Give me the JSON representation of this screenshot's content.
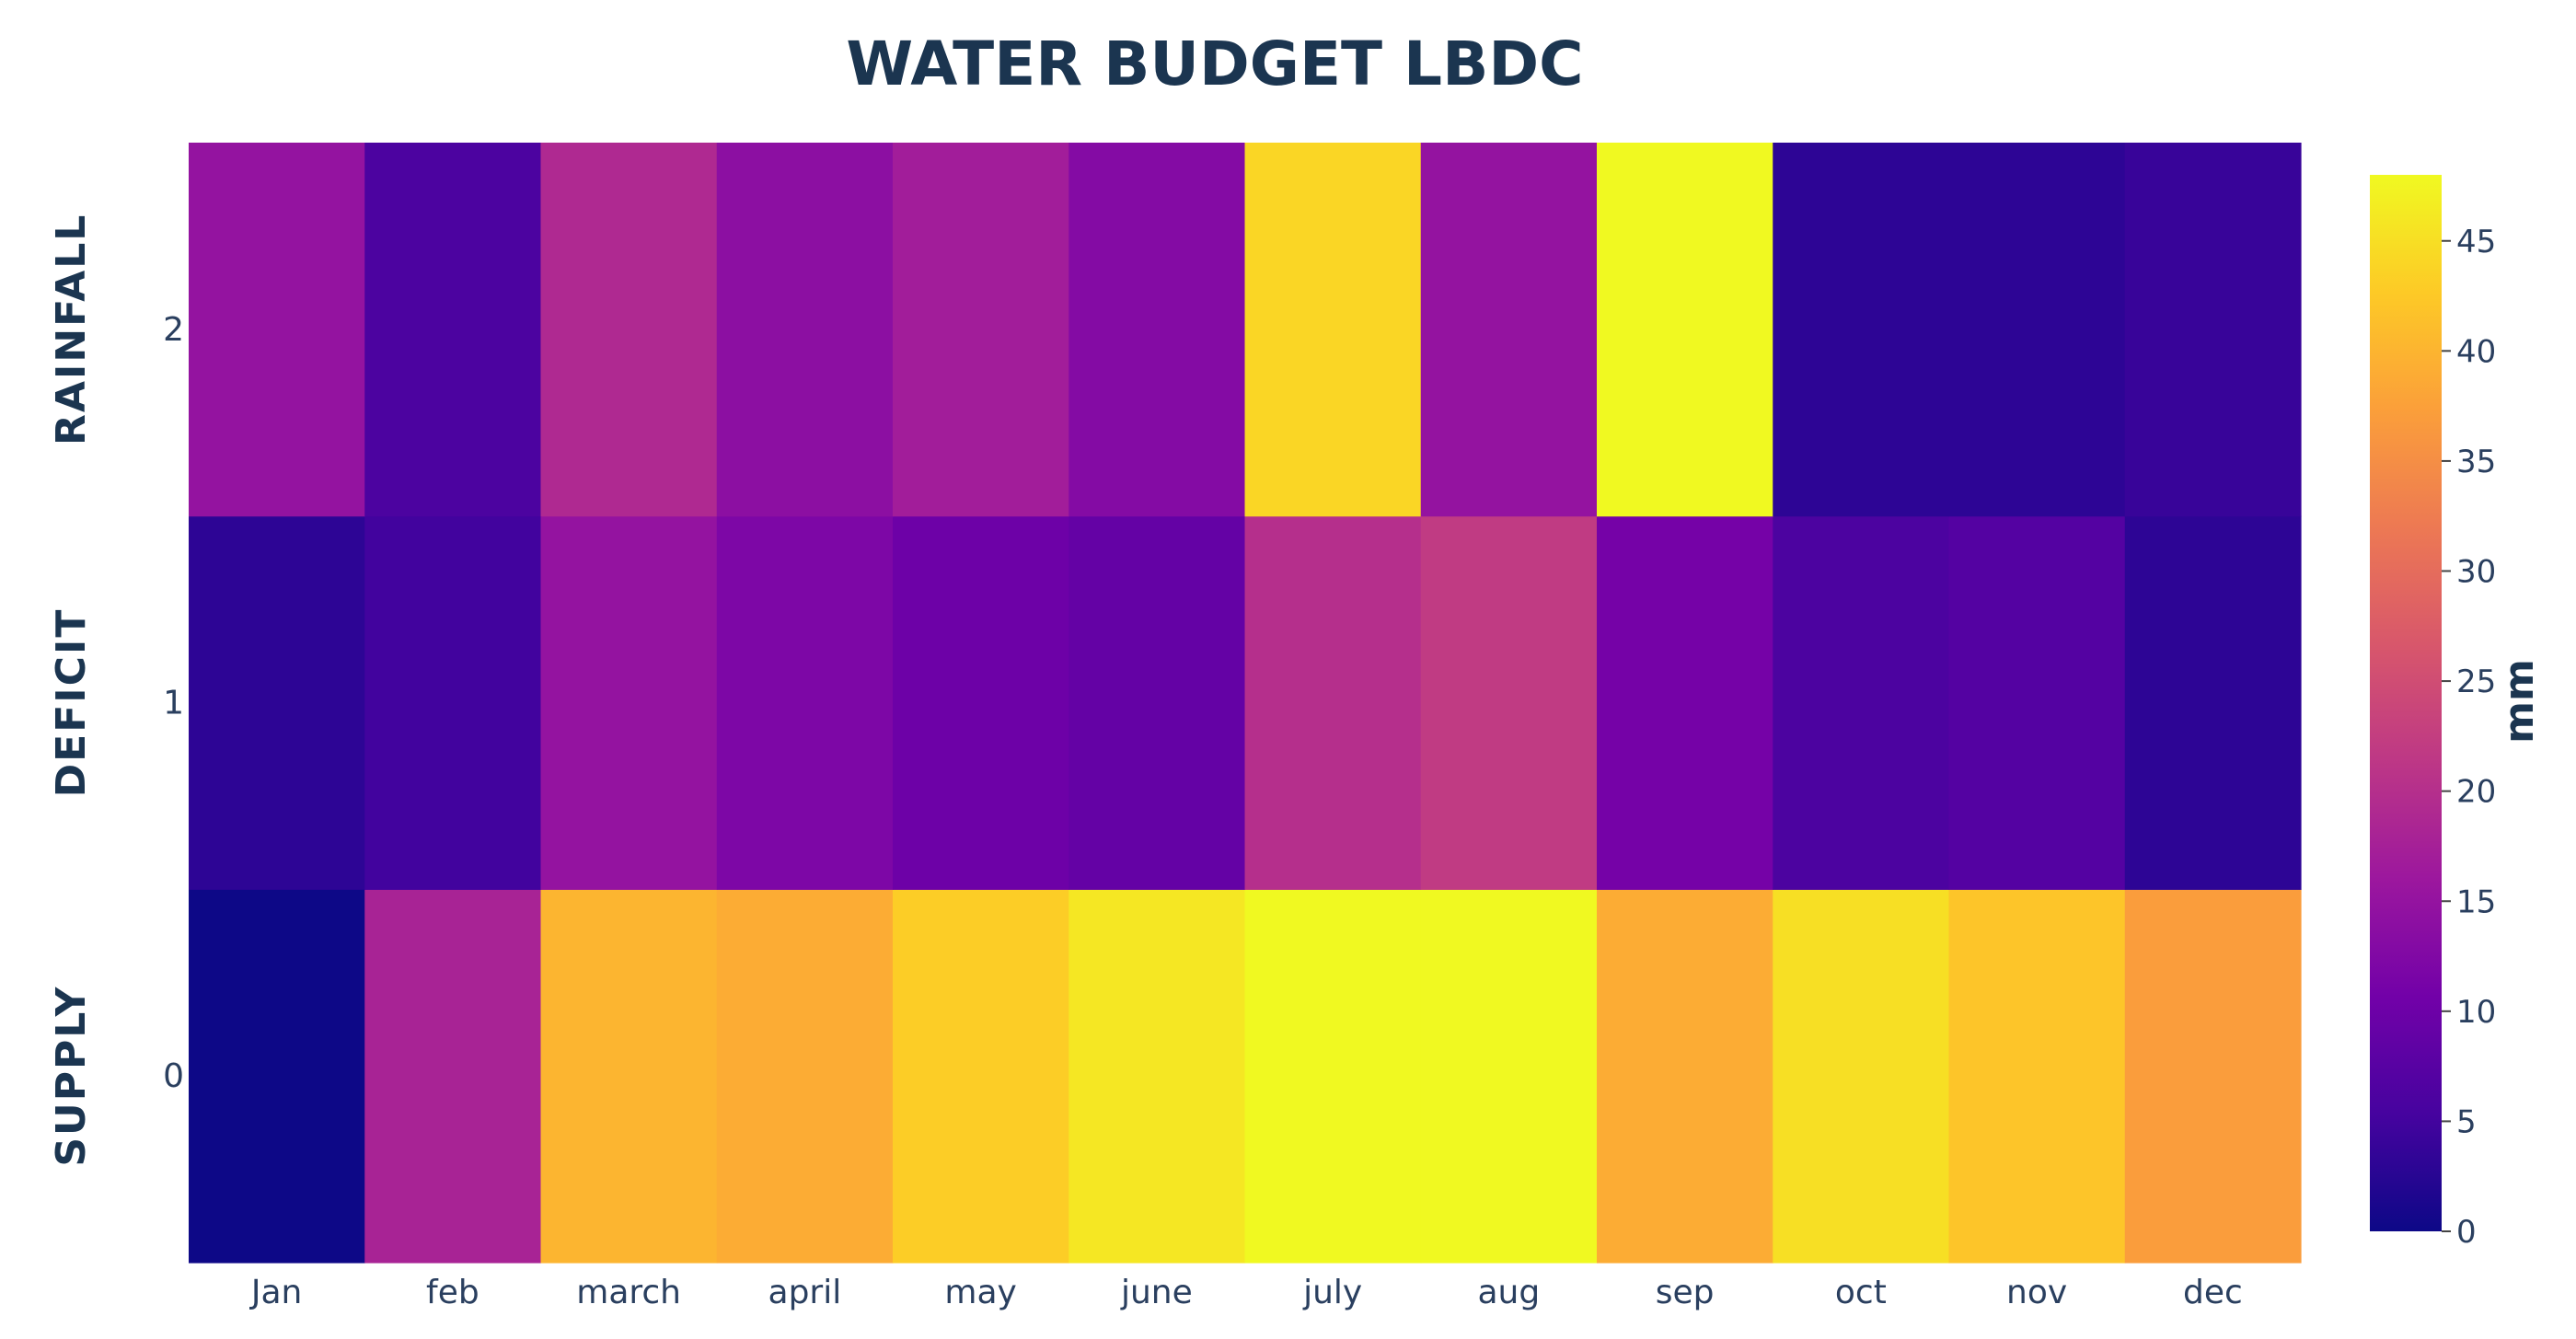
{
  "chart_data": {
    "type": "heatmap",
    "title": "WATER BUDGET LBDC",
    "x": [
      "Jan",
      "feb",
      "march",
      "april",
      "may",
      "june",
      "july",
      "aug",
      "sep",
      "oct",
      "nov",
      "dec"
    ],
    "y_ticks": [
      "0",
      "1",
      "2"
    ],
    "row_labels": [
      "SUPPLY",
      "DEFICIT",
      "RAINFALL"
    ],
    "z": [
      [
        0,
        18,
        40,
        39,
        43,
        46,
        48,
        48,
        39,
        45,
        42,
        37
      ],
      [
        3,
        5,
        15,
        12,
        10,
        9,
        20,
        22,
        11,
        6,
        7,
        3
      ],
      [
        15,
        6,
        19,
        14,
        17,
        13,
        44,
        15,
        48,
        3,
        3,
        4
      ]
    ],
    "zmin": 0,
    "zmax": 48,
    "colorscale": "Plasma",
    "colorbar": {
      "title": "mm",
      "ticks": [
        "0",
        "5",
        "10",
        "15",
        "20",
        "25",
        "30",
        "35",
        "40",
        "45"
      ]
    }
  }
}
